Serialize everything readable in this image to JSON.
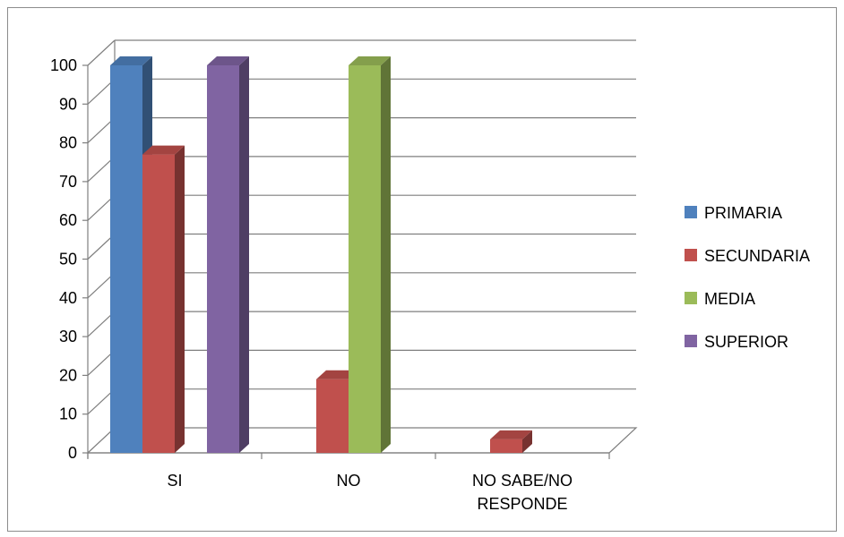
{
  "chart_data": {
    "type": "bar",
    "style": "3d-clustered-column",
    "categories": [
      "SI",
      "NO",
      "NO SABE/NO RESPONDE"
    ],
    "category_lines": [
      [
        "SI"
      ],
      [
        "NO"
      ],
      [
        "NO SABE/NO",
        "RESPONDE"
      ]
    ],
    "series": [
      {
        "name": "PRIMARIA",
        "values": [
          100,
          0,
          0
        ],
        "color": "#4F81BD"
      },
      {
        "name": "SECUNDARIA",
        "values": [
          77,
          19,
          3.5
        ],
        "color": "#C0504D"
      },
      {
        "name": "MEDIA",
        "values": [
          0,
          100,
          0
        ],
        "color": "#9BBB59"
      },
      {
        "name": "SUPERIOR",
        "values": [
          100,
          0,
          0
        ],
        "color": "#8064A2"
      }
    ],
    "ylim": [
      0,
      100
    ],
    "yticks": [
      0,
      10,
      20,
      30,
      40,
      50,
      60,
      70,
      80,
      90,
      100
    ],
    "grid": true,
    "legend_position": "right"
  }
}
